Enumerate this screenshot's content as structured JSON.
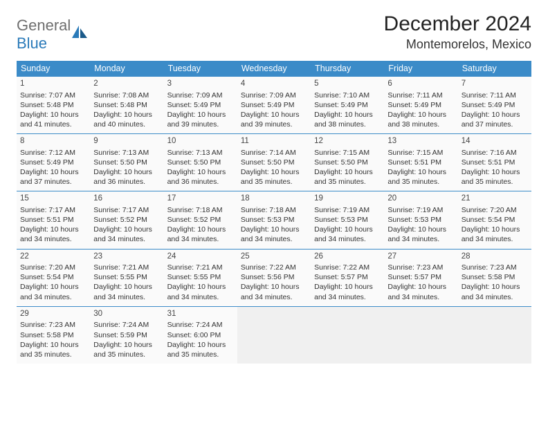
{
  "logo": {
    "text_gray": "General",
    "text_blue": "Blue"
  },
  "header": {
    "month_title": "December 2024",
    "location": "Montemorelos, Mexico"
  },
  "colors": {
    "header_bg": "#3b8bc8",
    "header_fg": "#ffffff",
    "cell_bg": "#fafafa",
    "empty_bg": "#f0f0f0",
    "border": "#3b8bc8",
    "logo_gray": "#6e6e6e",
    "logo_blue": "#2a7ab9"
  },
  "day_headers": [
    "Sunday",
    "Monday",
    "Tuesday",
    "Wednesday",
    "Thursday",
    "Friday",
    "Saturday"
  ],
  "weeks": [
    [
      {
        "n": "1",
        "sr": "Sunrise: 7:07 AM",
        "ss": "Sunset: 5:48 PM",
        "d1": "Daylight: 10 hours",
        "d2": "and 41 minutes."
      },
      {
        "n": "2",
        "sr": "Sunrise: 7:08 AM",
        "ss": "Sunset: 5:48 PM",
        "d1": "Daylight: 10 hours",
        "d2": "and 40 minutes."
      },
      {
        "n": "3",
        "sr": "Sunrise: 7:09 AM",
        "ss": "Sunset: 5:49 PM",
        "d1": "Daylight: 10 hours",
        "d2": "and 39 minutes."
      },
      {
        "n": "4",
        "sr": "Sunrise: 7:09 AM",
        "ss": "Sunset: 5:49 PM",
        "d1": "Daylight: 10 hours",
        "d2": "and 39 minutes."
      },
      {
        "n": "5",
        "sr": "Sunrise: 7:10 AM",
        "ss": "Sunset: 5:49 PM",
        "d1": "Daylight: 10 hours",
        "d2": "and 38 minutes."
      },
      {
        "n": "6",
        "sr": "Sunrise: 7:11 AM",
        "ss": "Sunset: 5:49 PM",
        "d1": "Daylight: 10 hours",
        "d2": "and 38 minutes."
      },
      {
        "n": "7",
        "sr": "Sunrise: 7:11 AM",
        "ss": "Sunset: 5:49 PM",
        "d1": "Daylight: 10 hours",
        "d2": "and 37 minutes."
      }
    ],
    [
      {
        "n": "8",
        "sr": "Sunrise: 7:12 AM",
        "ss": "Sunset: 5:49 PM",
        "d1": "Daylight: 10 hours",
        "d2": "and 37 minutes."
      },
      {
        "n": "9",
        "sr": "Sunrise: 7:13 AM",
        "ss": "Sunset: 5:50 PM",
        "d1": "Daylight: 10 hours",
        "d2": "and 36 minutes."
      },
      {
        "n": "10",
        "sr": "Sunrise: 7:13 AM",
        "ss": "Sunset: 5:50 PM",
        "d1": "Daylight: 10 hours",
        "d2": "and 36 minutes."
      },
      {
        "n": "11",
        "sr": "Sunrise: 7:14 AM",
        "ss": "Sunset: 5:50 PM",
        "d1": "Daylight: 10 hours",
        "d2": "and 35 minutes."
      },
      {
        "n": "12",
        "sr": "Sunrise: 7:15 AM",
        "ss": "Sunset: 5:50 PM",
        "d1": "Daylight: 10 hours",
        "d2": "and 35 minutes."
      },
      {
        "n": "13",
        "sr": "Sunrise: 7:15 AM",
        "ss": "Sunset: 5:51 PM",
        "d1": "Daylight: 10 hours",
        "d2": "and 35 minutes."
      },
      {
        "n": "14",
        "sr": "Sunrise: 7:16 AM",
        "ss": "Sunset: 5:51 PM",
        "d1": "Daylight: 10 hours",
        "d2": "and 35 minutes."
      }
    ],
    [
      {
        "n": "15",
        "sr": "Sunrise: 7:17 AM",
        "ss": "Sunset: 5:51 PM",
        "d1": "Daylight: 10 hours",
        "d2": "and 34 minutes."
      },
      {
        "n": "16",
        "sr": "Sunrise: 7:17 AM",
        "ss": "Sunset: 5:52 PM",
        "d1": "Daylight: 10 hours",
        "d2": "and 34 minutes."
      },
      {
        "n": "17",
        "sr": "Sunrise: 7:18 AM",
        "ss": "Sunset: 5:52 PM",
        "d1": "Daylight: 10 hours",
        "d2": "and 34 minutes."
      },
      {
        "n": "18",
        "sr": "Sunrise: 7:18 AM",
        "ss": "Sunset: 5:53 PM",
        "d1": "Daylight: 10 hours",
        "d2": "and 34 minutes."
      },
      {
        "n": "19",
        "sr": "Sunrise: 7:19 AM",
        "ss": "Sunset: 5:53 PM",
        "d1": "Daylight: 10 hours",
        "d2": "and 34 minutes."
      },
      {
        "n": "20",
        "sr": "Sunrise: 7:19 AM",
        "ss": "Sunset: 5:53 PM",
        "d1": "Daylight: 10 hours",
        "d2": "and 34 minutes."
      },
      {
        "n": "21",
        "sr": "Sunrise: 7:20 AM",
        "ss": "Sunset: 5:54 PM",
        "d1": "Daylight: 10 hours",
        "d2": "and 34 minutes."
      }
    ],
    [
      {
        "n": "22",
        "sr": "Sunrise: 7:20 AM",
        "ss": "Sunset: 5:54 PM",
        "d1": "Daylight: 10 hours",
        "d2": "and 34 minutes."
      },
      {
        "n": "23",
        "sr": "Sunrise: 7:21 AM",
        "ss": "Sunset: 5:55 PM",
        "d1": "Daylight: 10 hours",
        "d2": "and 34 minutes."
      },
      {
        "n": "24",
        "sr": "Sunrise: 7:21 AM",
        "ss": "Sunset: 5:55 PM",
        "d1": "Daylight: 10 hours",
        "d2": "and 34 minutes."
      },
      {
        "n": "25",
        "sr": "Sunrise: 7:22 AM",
        "ss": "Sunset: 5:56 PM",
        "d1": "Daylight: 10 hours",
        "d2": "and 34 minutes."
      },
      {
        "n": "26",
        "sr": "Sunrise: 7:22 AM",
        "ss": "Sunset: 5:57 PM",
        "d1": "Daylight: 10 hours",
        "d2": "and 34 minutes."
      },
      {
        "n": "27",
        "sr": "Sunrise: 7:23 AM",
        "ss": "Sunset: 5:57 PM",
        "d1": "Daylight: 10 hours",
        "d2": "and 34 minutes."
      },
      {
        "n": "28",
        "sr": "Sunrise: 7:23 AM",
        "ss": "Sunset: 5:58 PM",
        "d1": "Daylight: 10 hours",
        "d2": "and 34 minutes."
      }
    ],
    [
      {
        "n": "29",
        "sr": "Sunrise: 7:23 AM",
        "ss": "Sunset: 5:58 PM",
        "d1": "Daylight: 10 hours",
        "d2": "and 35 minutes."
      },
      {
        "n": "30",
        "sr": "Sunrise: 7:24 AM",
        "ss": "Sunset: 5:59 PM",
        "d1": "Daylight: 10 hours",
        "d2": "and 35 minutes."
      },
      {
        "n": "31",
        "sr": "Sunrise: 7:24 AM",
        "ss": "Sunset: 6:00 PM",
        "d1": "Daylight: 10 hours",
        "d2": "and 35 minutes."
      },
      null,
      null,
      null,
      null
    ]
  ]
}
